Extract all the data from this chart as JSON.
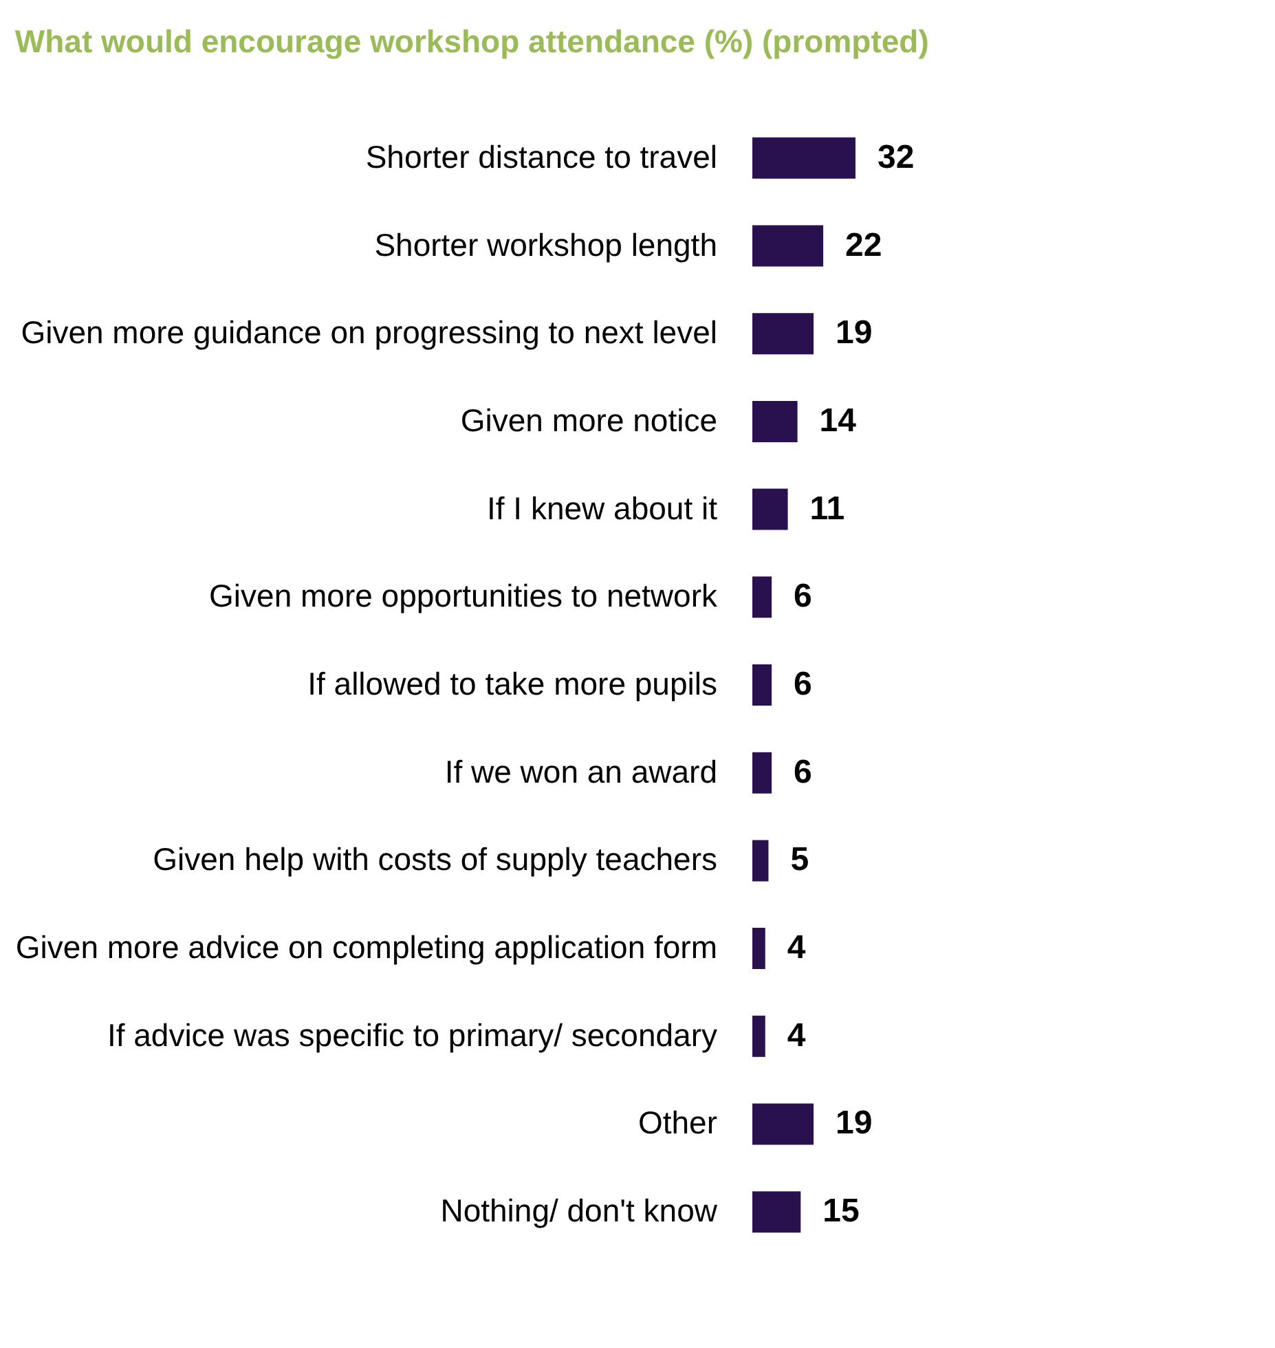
{
  "chart_data": {
    "type": "bar",
    "orientation": "horizontal",
    "title": "What would encourage workshop attendance (%) (prompted)",
    "categories": [
      "Shorter distance to travel",
      "Shorter workshop length",
      "Given more guidance on progressing to next level",
      "Given more notice",
      "If I knew about it",
      "Given more opportunities to network",
      "If allowed to take more pupils",
      "If we won an award",
      "Given help with costs of supply teachers",
      "Given more advice on completing application form",
      "If advice was specific to primary/ secondary",
      "Other",
      "Nothing/ don't know"
    ],
    "values": [
      32,
      22,
      19,
      14,
      11,
      6,
      6,
      6,
      5,
      4,
      4,
      19,
      15
    ],
    "color": "#29104f",
    "data_labels": true
  }
}
